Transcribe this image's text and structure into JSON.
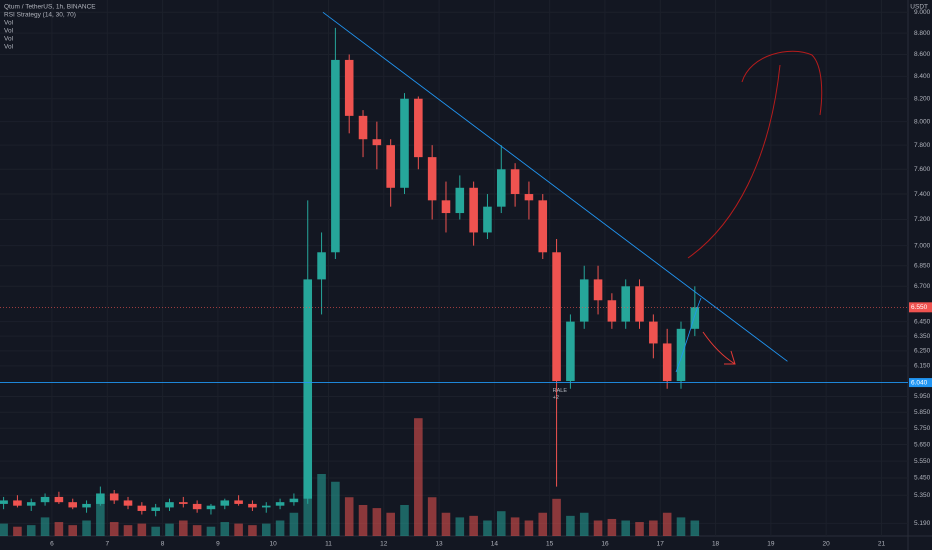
{
  "chart_data": {
    "type": "candlestick",
    "title": "Qtum / TetherUS, 1h, BINANCE",
    "legend_items": [
      "RSI Strategy (14, 30, 70)",
      "Vol",
      "Vol",
      "Vol",
      "Vol"
    ],
    "axis_unit": "USDT",
    "log": true,
    "grid": true,
    "up_color": "#26a69a",
    "down_color": "#ef5350",
    "x": [
      5.0,
      5.25,
      5.5,
      5.75,
      6.0,
      6.25,
      6.5,
      6.75,
      7.0,
      7.25,
      7.5,
      7.75,
      8.0,
      8.25,
      8.5,
      8.75,
      9.0,
      9.25,
      9.5,
      9.75,
      10.0,
      10.25,
      10.5,
      10.75,
      11.0,
      11.25,
      11.5,
      11.75,
      12.0,
      12.25,
      12.5,
      12.75,
      13.0,
      13.25,
      13.5,
      13.75,
      14.0,
      14.25,
      14.5,
      14.75,
      15.0,
      15.25,
      15.5,
      15.75,
      16.0,
      16.25,
      16.5,
      16.75,
      17.0,
      17.25,
      17.5
    ],
    "open": [
      5.3,
      5.32,
      5.29,
      5.31,
      5.34,
      5.31,
      5.28,
      5.3,
      5.36,
      5.32,
      5.29,
      5.26,
      5.28,
      5.31,
      5.3,
      5.27,
      5.29,
      5.32,
      5.3,
      5.28,
      5.29,
      5.31,
      5.33,
      6.75,
      6.95,
      8.55,
      8.05,
      7.85,
      7.8,
      7.45,
      8.2,
      7.7,
      7.35,
      7.25,
      7.45,
      7.1,
      7.3,
      7.6,
      7.4,
      7.35,
      6.95,
      6.05,
      6.45,
      6.75,
      6.6,
      6.45,
      6.7,
      6.45,
      6.3,
      6.05,
      6.4
    ],
    "high": [
      5.34,
      5.35,
      5.33,
      5.36,
      5.37,
      5.33,
      5.32,
      5.4,
      5.38,
      5.34,
      5.31,
      5.3,
      5.33,
      5.34,
      5.32,
      5.3,
      5.33,
      5.35,
      5.32,
      5.31,
      5.33,
      5.36,
      7.35,
      7.1,
      8.85,
      8.6,
      8.1,
      8.0,
      7.85,
      8.25,
      8.22,
      7.8,
      7.5,
      7.55,
      7.5,
      7.4,
      7.8,
      7.65,
      7.5,
      7.4,
      7.05,
      6.5,
      6.85,
      6.85,
      6.65,
      6.75,
      6.75,
      6.5,
      6.4,
      6.45,
      6.7
    ],
    "low": [
      5.27,
      5.28,
      5.26,
      5.29,
      5.3,
      5.27,
      5.25,
      5.29,
      5.3,
      5.27,
      5.24,
      5.23,
      5.26,
      5.28,
      5.25,
      5.24,
      5.27,
      5.29,
      5.26,
      5.25,
      5.27,
      5.29,
      5.3,
      6.5,
      6.9,
      7.9,
      7.7,
      7.6,
      7.3,
      7.4,
      7.6,
      7.2,
      7.1,
      7.2,
      7.0,
      7.05,
      7.25,
      7.3,
      7.2,
      6.9,
      5.4,
      6.0,
      6.4,
      6.5,
      6.4,
      6.4,
      6.4,
      6.2,
      6.0,
      6.0,
      6.35
    ],
    "close": [
      5.32,
      5.29,
      5.31,
      5.34,
      5.31,
      5.28,
      5.3,
      5.36,
      5.32,
      5.29,
      5.26,
      5.28,
      5.31,
      5.3,
      5.27,
      5.29,
      5.32,
      5.3,
      5.28,
      5.29,
      5.31,
      5.33,
      6.75,
      6.95,
      8.55,
      8.05,
      7.85,
      7.8,
      7.45,
      8.2,
      7.7,
      7.35,
      7.25,
      7.45,
      7.1,
      7.3,
      7.6,
      7.4,
      7.35,
      6.95,
      6.05,
      6.45,
      6.75,
      6.6,
      6.45,
      6.7,
      6.45,
      6.3,
      6.05,
      6.4,
      6.55
    ],
    "volume": [
      0.8,
      0.6,
      0.7,
      1.2,
      0.9,
      0.7,
      1.0,
      2.5,
      0.9,
      0.7,
      0.8,
      0.6,
      0.8,
      1.0,
      0.7,
      0.6,
      0.9,
      0.8,
      0.7,
      0.8,
      1.0,
      1.5,
      9.5,
      4.0,
      3.5,
      2.5,
      2.0,
      1.8,
      1.5,
      2.0,
      7.6,
      2.5,
      1.5,
      1.2,
      1.3,
      1.0,
      1.6,
      1.2,
      1.0,
      1.5,
      2.4,
      1.3,
      1.5,
      1.0,
      1.1,
      1.0,
      0.9,
      1.0,
      1.5,
      1.2,
      1.0
    ],
    "y2lim": [
      0,
      10
    ],
    "ylim": [
      5.12,
      9.12
    ],
    "yticks": [
      {
        "value": 9.0,
        "label": "9.000"
      },
      {
        "value": 8.8,
        "label": "8.800"
      },
      {
        "value": 8.6,
        "label": "8.600"
      },
      {
        "value": 8.4,
        "label": "8.400"
      },
      {
        "value": 8.2,
        "label": "8.200"
      },
      {
        "value": 8.0,
        "label": "8.000"
      },
      {
        "value": 7.8,
        "label": "7.800"
      },
      {
        "value": 7.6,
        "label": "7.600"
      },
      {
        "value": 7.4,
        "label": "7.400"
      },
      {
        "value": 7.2,
        "label": "7.200"
      },
      {
        "value": 7.0,
        "label": "7.000"
      },
      {
        "value": 6.85,
        "label": "6.850"
      },
      {
        "value": 6.7,
        "label": "6.700"
      },
      {
        "value": 6.45,
        "label": "6.450"
      },
      {
        "value": 6.35,
        "label": "6.350"
      },
      {
        "value": 6.25,
        "label": "6.250"
      },
      {
        "value": 6.15,
        "label": "6.150"
      },
      {
        "value": 5.95,
        "label": "5.950"
      },
      {
        "value": 5.85,
        "label": "5.850"
      },
      {
        "value": 5.75,
        "label": "5.750"
      },
      {
        "value": 5.65,
        "label": "5.650"
      },
      {
        "value": 5.55,
        "label": "5.550"
      },
      {
        "value": 5.45,
        "label": "5.450"
      },
      {
        "value": 5.35,
        "label": "5.350"
      },
      {
        "value": 5.19,
        "label": "5.190"
      }
    ],
    "xlim": [
      5.06,
      21.48
    ],
    "xticks": [
      6,
      7,
      8,
      9,
      10,
      11,
      12,
      13,
      14,
      15,
      16,
      17,
      18,
      19,
      20,
      21
    ],
    "price_line": {
      "value": 6.55,
      "label": "6.550"
    },
    "support_line": {
      "value": 6.04,
      "label": "6.040"
    },
    "trendline": {
      "x": [
        10.9,
        19.3
      ],
      "y": [
        9.0,
        6.18
      ]
    },
    "annotations": [
      "RALE",
      "+2"
    ],
    "annotation_x": 15.0
  }
}
